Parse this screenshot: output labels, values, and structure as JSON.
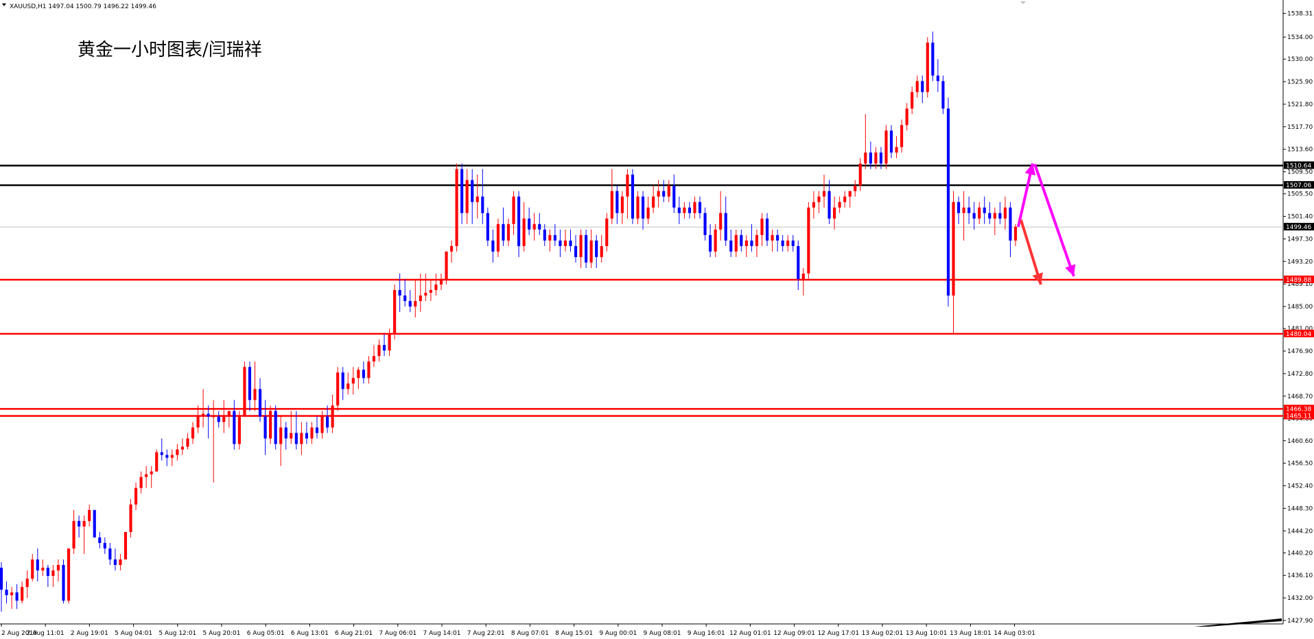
{
  "header": {
    "symbol_line": "XAUUSD,H1  1497.04 1500.79 1496.22 1499.46",
    "annotation": "黄金一小时图表/闫瑞祥"
  },
  "colors": {
    "bull": "#ff0000",
    "bear": "#0000ff",
    "black_level": "#000000",
    "red_level": "#ff0000",
    "gray_level": "#c0c0c0",
    "arrow_magenta": "#ff00ff",
    "arrow_red": "#ff3333"
  },
  "chart_data": {
    "type": "candlestick",
    "symbol": "XAUUSD",
    "timeframe": "H1",
    "ylim": [
      1427.9,
      1539.5
    ],
    "y_ticks": [
      "1538.31",
      "1534.00",
      "1530.00",
      "1525.90",
      "1521.80",
      "1517.70",
      "1513.60",
      "1509.50",
      "1505.50",
      "1501.40",
      "1497.30",
      "1493.20",
      "1489.10",
      "1485.00",
      "1481.00",
      "1476.90",
      "1472.80",
      "1468.70",
      "1464.60",
      "1460.60",
      "1456.50",
      "1452.40",
      "1448.30",
      "1444.20",
      "1440.20",
      "1436.10",
      "1432.00",
      "1427.90"
    ],
    "x_ticks": [
      "2 Aug 2019",
      "2 Aug 11:01",
      "2 Aug 19:01",
      "5 Aug 04:01",
      "5 Aug 12:01",
      "5 Aug 20:01",
      "6 Aug 05:01",
      "6 Aug 13:01",
      "6 Aug 21:01",
      "7 Aug 06:01",
      "7 Aug 14:01",
      "7 Aug 22:01",
      "8 Aug 07:01",
      "8 Aug 15:01",
      "9 Aug 00:01",
      "9 Aug 08:01",
      "9 Aug 16:01",
      "12 Aug 01:01",
      "12 Aug 09:01",
      "12 Aug 17:01",
      "13 Aug 02:01",
      "13 Aug 10:01",
      "13 Aug 18:01",
      "14 Aug 03:01"
    ],
    "levels": [
      {
        "price": 1510.64,
        "label": "1510.64",
        "color": "black"
      },
      {
        "price": 1507.06,
        "label": "1507.06",
        "color": "black"
      },
      {
        "price": 1499.46,
        "label": "1499.46",
        "color": "gray"
      },
      {
        "price": 1489.88,
        "label": "1489.88",
        "color": "red"
      },
      {
        "price": 1480.04,
        "label": "1480.04",
        "color": "red"
      },
      {
        "price": 1466.38,
        "label": "1466.38",
        "color": "red"
      },
      {
        "price": 1465.11,
        "label": "1465.11",
        "color": "red"
      }
    ],
    "candles": [
      [
        1437.5,
        1438.5,
        1429.5,
        1433.5
      ],
      [
        1433.5,
        1435,
        1431,
        1432.5
      ],
      [
        1432.5,
        1434,
        1430,
        1433
      ],
      [
        1433,
        1434.5,
        1430,
        1431.5
      ],
      [
        1431.5,
        1435,
        1431,
        1434
      ],
      [
        1434,
        1437,
        1432,
        1435.5
      ],
      [
        1435.5,
        1440,
        1435,
        1439
      ],
      [
        1439,
        1441,
        1435,
        1437
      ],
      [
        1437,
        1439,
        1436,
        1437.5
      ],
      [
        1437.5,
        1438,
        1434,
        1436
      ],
      [
        1436,
        1438,
        1434,
        1437
      ],
      [
        1437,
        1439,
        1435,
        1438
      ],
      [
        1438,
        1439,
        1431,
        1431.5
      ],
      [
        1431.5,
        1441,
        1431,
        1441
      ],
      [
        1441,
        1448,
        1440,
        1446
      ],
      [
        1446,
        1447,
        1443,
        1445
      ],
      [
        1445,
        1447,
        1440,
        1446
      ],
      [
        1446,
        1449,
        1445,
        1448
      ],
      [
        1448,
        1448,
        1443,
        1443
      ],
      [
        1443,
        1444,
        1441,
        1442
      ],
      [
        1442,
        1443,
        1440,
        1441
      ],
      [
        1441,
        1442,
        1438,
        1439
      ],
      [
        1439,
        1441,
        1437,
        1438
      ],
      [
        1438,
        1440,
        1437,
        1439
      ],
      [
        1439,
        1444,
        1439,
        1444
      ],
      [
        1444,
        1450,
        1443,
        1449
      ],
      [
        1449,
        1453,
        1448,
        1452
      ],
      [
        1452,
        1455,
        1451,
        1454
      ],
      [
        1454,
        1456,
        1452,
        1454.5
      ],
      [
        1454.5,
        1456,
        1452,
        1455
      ],
      [
        1455,
        1459,
        1455,
        1458.5
      ],
      [
        1458.5,
        1461,
        1457,
        1458
      ],
      [
        1458,
        1459,
        1456,
        1457.5
      ],
      [
        1457.5,
        1459,
        1456,
        1458
      ],
      [
        1458,
        1460,
        1457,
        1459
      ],
      [
        1459,
        1461,
        1458,
        1459.5
      ],
      [
        1459.5,
        1462,
        1459,
        1461
      ],
      [
        1461,
        1464,
        1460,
        1463
      ],
      [
        1463,
        1467,
        1462,
        1465
      ],
      [
        1465,
        1470,
        1463,
        1465.5
      ],
      [
        1465.5,
        1467,
        1461,
        1465
      ],
      [
        1465,
        1468,
        1453,
        1465
      ],
      [
        1465,
        1466,
        1463,
        1464
      ],
      [
        1464,
        1468,
        1462,
        1465
      ],
      [
        1465,
        1466,
        1463,
        1466
      ],
      [
        1466,
        1468,
        1459,
        1460
      ],
      [
        1460,
        1466,
        1459,
        1465
      ],
      [
        1465,
        1475,
        1465,
        1474
      ],
      [
        1474,
        1475,
        1466,
        1468
      ],
      [
        1468,
        1475,
        1466,
        1470
      ],
      [
        1470,
        1472,
        1464,
        1465
      ],
      [
        1465,
        1468,
        1458,
        1461
      ],
      [
        1461,
        1467,
        1460,
        1466
      ],
      [
        1466,
        1467,
        1459,
        1460
      ],
      [
        1460,
        1465,
        1456,
        1463
      ],
      [
        1463,
        1464,
        1459,
        1461
      ],
      [
        1461,
        1466,
        1460,
        1462
      ],
      [
        1462,
        1466,
        1459,
        1460
      ],
      [
        1460,
        1464,
        1458,
        1462
      ],
      [
        1462,
        1464,
        1460,
        1461
      ],
      [
        1461,
        1464,
        1460,
        1463
      ],
      [
        1463,
        1465,
        1461,
        1462
      ],
      [
        1462,
        1466,
        1461,
        1465
      ],
      [
        1465,
        1467,
        1462,
        1463
      ],
      [
        1463,
        1469,
        1462,
        1467
      ],
      [
        1467,
        1474,
        1466,
        1473
      ],
      [
        1473,
        1474,
        1468,
        1470
      ],
      [
        1470,
        1473,
        1469,
        1471
      ],
      [
        1471,
        1474,
        1469,
        1472
      ],
      [
        1472,
        1474,
        1470,
        1473.5
      ],
      [
        1473.5,
        1475,
        1471,
        1472
      ],
      [
        1472,
        1476,
        1471,
        1475
      ],
      [
        1475,
        1478,
        1474,
        1476
      ],
      [
        1476,
        1479,
        1475,
        1478
      ],
      [
        1478,
        1480,
        1476,
        1477
      ],
      [
        1477,
        1481,
        1476,
        1480
      ],
      [
        1480,
        1489,
        1479,
        1488
      ],
      [
        1488,
        1491,
        1484,
        1487
      ],
      [
        1487,
        1490,
        1485,
        1486
      ],
      [
        1486,
        1488,
        1484,
        1485
      ],
      [
        1485,
        1490,
        1483,
        1486
      ],
      [
        1486,
        1491,
        1484,
        1487
      ],
      [
        1487,
        1491,
        1486,
        1487.5
      ],
      [
        1487.5,
        1490,
        1486,
        1488
      ],
      [
        1488,
        1491,
        1487,
        1489
      ],
      [
        1489,
        1491,
        1488,
        1490
      ],
      [
        1490,
        1495,
        1489,
        1495
      ],
      [
        1495,
        1497,
        1493,
        1496
      ],
      [
        1496,
        1511,
        1495,
        1510
      ],
      [
        1510,
        1511,
        1500,
        1502
      ],
      [
        1502,
        1510,
        1500,
        1508
      ],
      [
        1508,
        1510,
        1500,
        1504
      ],
      [
        1504,
        1509,
        1501,
        1505
      ],
      [
        1505,
        1510,
        1500,
        1502
      ],
      [
        1502,
        1503,
        1496,
        1497
      ],
      [
        1497,
        1499,
        1493,
        1495
      ],
      [
        1495,
        1501,
        1494,
        1500
      ],
      [
        1500,
        1503,
        1496,
        1497
      ],
      [
        1497,
        1501,
        1496,
        1500
      ],
      [
        1500,
        1506,
        1498,
        1505
      ],
      [
        1505,
        1506,
        1494,
        1496
      ],
      [
        1496,
        1504,
        1495,
        1501
      ],
      [
        1501,
        1503,
        1498,
        1499
      ],
      [
        1499,
        1502,
        1497,
        1500
      ],
      [
        1500,
        1502,
        1498,
        1499
      ],
      [
        1499,
        1500,
        1496,
        1497
      ],
      [
        1497,
        1499,
        1495,
        1498
      ],
      [
        1498,
        1500,
        1496,
        1497
      ],
      [
        1497,
        1499,
        1494,
        1496
      ],
      [
        1496,
        1499,
        1495,
        1497
      ],
      [
        1497,
        1499,
        1495,
        1496
      ],
      [
        1496,
        1498,
        1493,
        1494
      ],
      [
        1494,
        1499,
        1492,
        1498
      ],
      [
        1498,
        1499,
        1492,
        1493
      ],
      [
        1493,
        1499,
        1492,
        1497
      ],
      [
        1497,
        1498,
        1492,
        1494
      ],
      [
        1494,
        1498,
        1493,
        1496
      ],
      [
        1496,
        1502,
        1495,
        1501
      ],
      [
        1501,
        1510,
        1500,
        1506
      ],
      [
        1506,
        1507,
        1500,
        1502
      ],
      [
        1502,
        1506,
        1500,
        1505
      ],
      [
        1505,
        1510,
        1501,
        1509
      ],
      [
        1509,
        1510,
        1500,
        1501
      ],
      [
        1501,
        1506,
        1500,
        1505
      ],
      [
        1505,
        1506,
        1499,
        1501
      ],
      [
        1501,
        1505,
        1500,
        1503
      ],
      [
        1503,
        1507,
        1502,
        1505
      ],
      [
        1505,
        1508,
        1503,
        1506
      ],
      [
        1506,
        1508,
        1504,
        1505
      ],
      [
        1505,
        1508,
        1504,
        1507
      ],
      [
        1507,
        1509,
        1502,
        1503
      ],
      [
        1503,
        1505,
        1500,
        1502
      ],
      [
        1502,
        1504,
        1501,
        1503
      ],
      [
        1503,
        1504,
        1501,
        1502
      ],
      [
        1502,
        1505,
        1501,
        1504
      ],
      [
        1504,
        1505,
        1501,
        1502
      ],
      [
        1502,
        1503,
        1497,
        1498
      ],
      [
        1498,
        1500,
        1494,
        1495
      ],
      [
        1495,
        1500,
        1494,
        1499
      ],
      [
        1499,
        1506,
        1497,
        1502
      ],
      [
        1502,
        1505,
        1496,
        1497
      ],
      [
        1497,
        1499,
        1494,
        1495
      ],
      [
        1495,
        1499,
        1494,
        1498
      ],
      [
        1498,
        1499,
        1495,
        1496
      ],
      [
        1496,
        1498,
        1494,
        1497
      ],
      [
        1497,
        1500,
        1495,
        1496
      ],
      [
        1496,
        1499,
        1494,
        1498
      ],
      [
        1498,
        1502,
        1496,
        1501
      ],
      [
        1501,
        1502,
        1496,
        1497
      ],
      [
        1497,
        1499,
        1495,
        1498
      ],
      [
        1498,
        1499,
        1495,
        1497
      ],
      [
        1497,
        1498,
        1495,
        1496
      ],
      [
        1496,
        1498,
        1495,
        1497
      ],
      [
        1497,
        1498,
        1495,
        1496
      ],
      [
        1496,
        1497,
        1488,
        1490
      ],
      [
        1490,
        1492,
        1487,
        1491
      ],
      [
        1491,
        1504,
        1490,
        1503
      ],
      [
        1503,
        1506,
        1501,
        1504
      ],
      [
        1504,
        1506,
        1502,
        1505
      ],
      [
        1505,
        1509,
        1503,
        1506
      ],
      [
        1506,
        1508,
        1500,
        1501
      ],
      [
        1501,
        1505,
        1499,
        1503
      ],
      [
        1503,
        1505,
        1502,
        1504
      ],
      [
        1504,
        1506,
        1503,
        1505
      ],
      [
        1505,
        1506,
        1503,
        1506
      ],
      [
        1506,
        1508,
        1505,
        1507
      ],
      [
        1507,
        1512,
        1506,
        1511
      ],
      [
        1511,
        1520,
        1510,
        1513
      ],
      [
        1513,
        1515,
        1510,
        1511
      ],
      [
        1511,
        1514,
        1510,
        1513
      ],
      [
        1513,
        1514,
        1510,
        1511
      ],
      [
        1511,
        1518,
        1510,
        1517
      ],
      [
        1517,
        1518,
        1512,
        1513
      ],
      [
        1513,
        1516,
        1512,
        1514
      ],
      [
        1514,
        1519,
        1513,
        1518
      ],
      [
        1518,
        1522,
        1517,
        1521
      ],
      [
        1521,
        1525,
        1520,
        1524
      ],
      [
        1524,
        1527,
        1523,
        1526
      ],
      [
        1526,
        1527,
        1522,
        1524
      ],
      [
        1524,
        1534,
        1523,
        1533
      ],
      [
        1533,
        1535,
        1526,
        1527
      ],
      [
        1527,
        1530,
        1524,
        1526
      ],
      [
        1526,
        1527,
        1520,
        1521
      ],
      [
        1521,
        1523,
        1485,
        1487
      ],
      [
        1487,
        1506,
        1480,
        1504
      ],
      [
        1504,
        1505,
        1500,
        1502
      ],
      [
        1502,
        1506,
        1497,
        1503
      ],
      [
        1503,
        1505,
        1500,
        1502
      ],
      [
        1502,
        1504,
        1499,
        1501
      ],
      [
        1501,
        1504,
        1500,
        1503
      ],
      [
        1503,
        1505,
        1500,
        1502
      ],
      [
        1502,
        1504,
        1500,
        1501
      ],
      [
        1501,
        1503,
        1498,
        1502
      ],
      [
        1502,
        1504,
        1500,
        1501
      ],
      [
        1501,
        1505,
        1499,
        1503
      ],
      [
        1503,
        1504,
        1494,
        1497
      ],
      [
        1497,
        1500,
        1496,
        1499.5
      ]
    ]
  }
}
